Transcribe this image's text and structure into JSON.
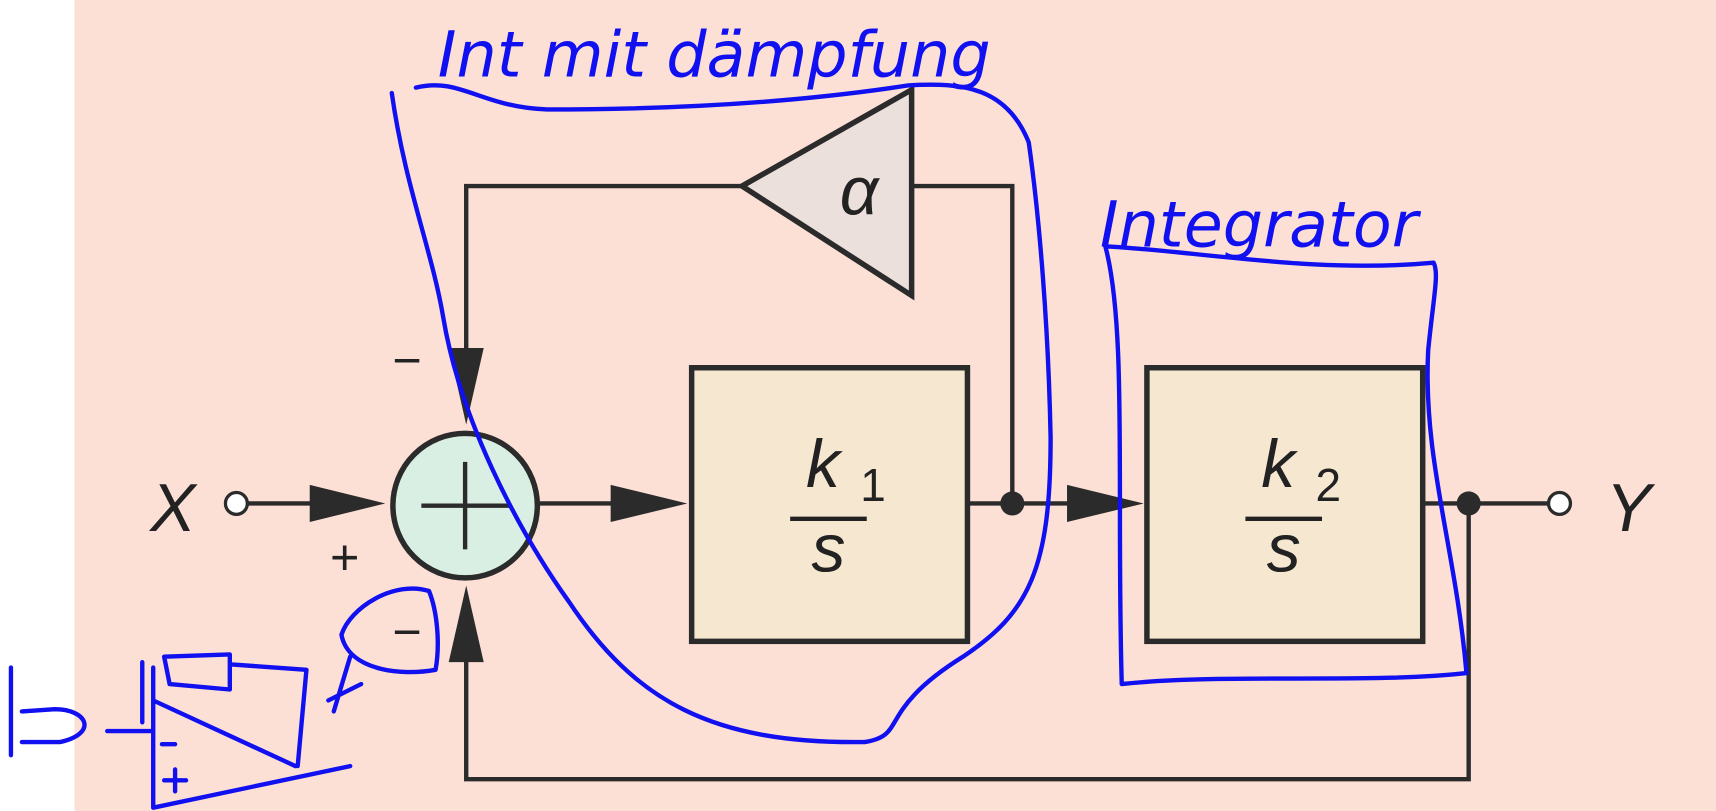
{
  "input": "X",
  "output": "Y",
  "summer": {
    "signs": [
      "−",
      "+",
      "−"
    ]
  },
  "gain": "α",
  "blocks": [
    {
      "numerator": "k",
      "subscript": "1",
      "denominator": "s"
    },
    {
      "numerator": "k",
      "subscript": "2",
      "denominator": "s"
    }
  ],
  "annotations": [
    "Int mit dämpfung",
    "Integrator"
  ]
}
